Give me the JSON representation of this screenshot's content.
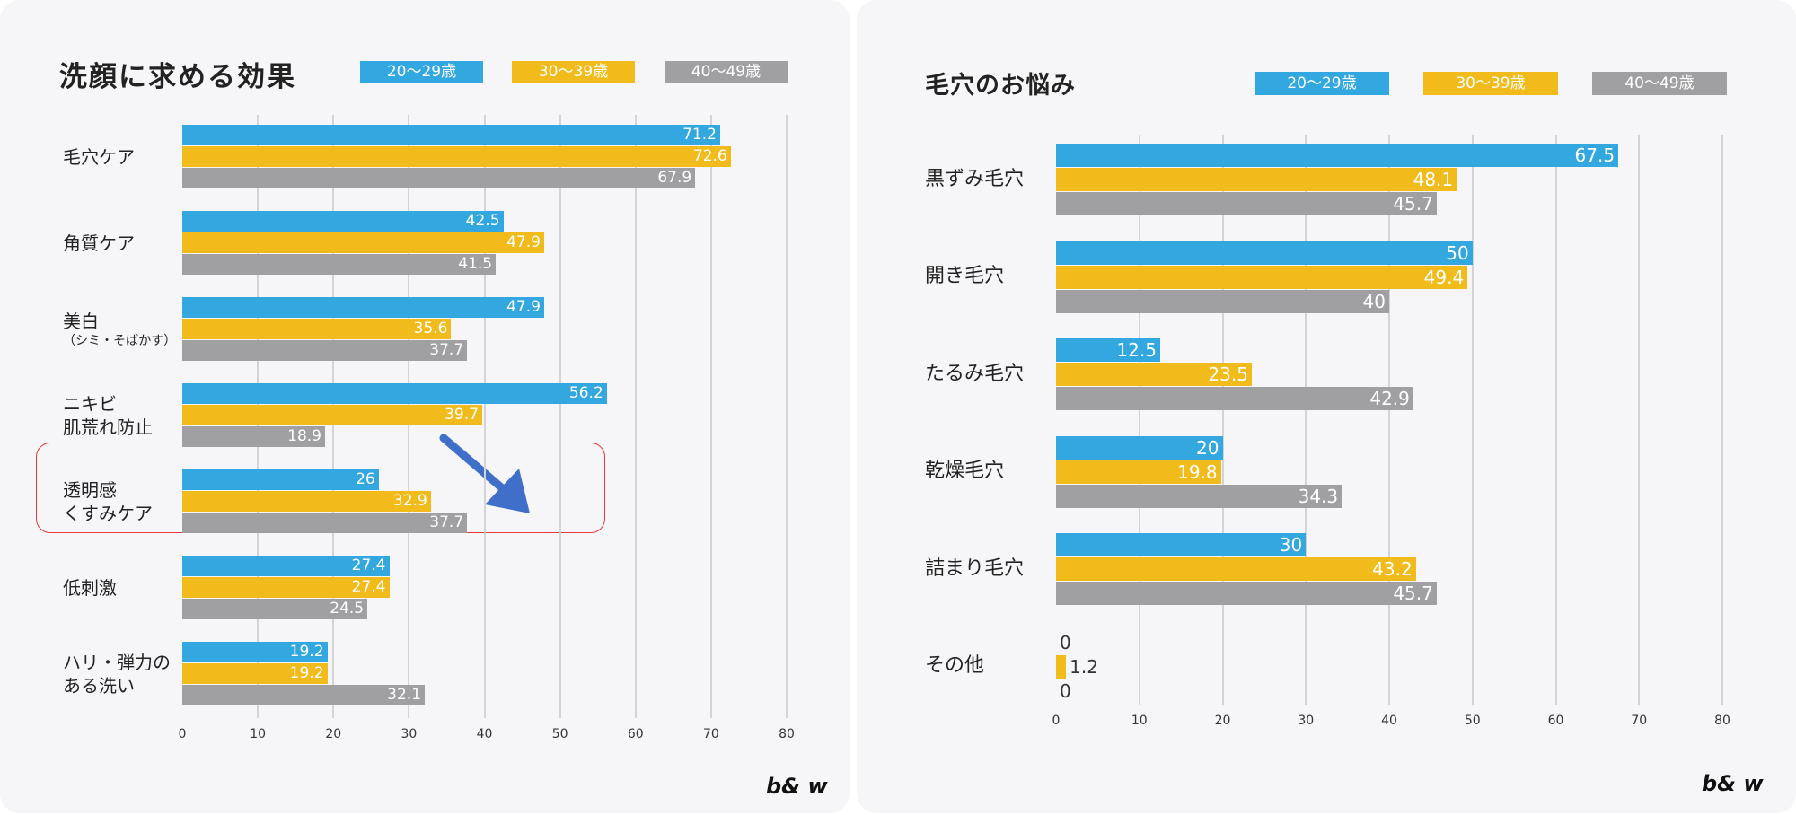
{
  "colors": {
    "s1": "#33a7e0",
    "s2": "#f2bb1c",
    "s3": "#a0a0a3",
    "highlight": "#e63a3a",
    "arrow": "#3f6fc9"
  },
  "brand": "b& w",
  "chart_data": [
    {
      "type": "bar",
      "orientation": "horizontal",
      "title": "洗顔に求める効果",
      "xlabel": "",
      "ylabel": "",
      "xlim": [
        0,
        80
      ],
      "ticks": [
        "0",
        "10",
        "20",
        "30",
        "40",
        "50",
        "60",
        "70",
        "80"
      ],
      "grid": true,
      "legend_position": "top",
      "categories": [
        {
          "main": "毛穴ケア",
          "sub": ""
        },
        {
          "main": "角質ケア",
          "sub": ""
        },
        {
          "main": "美白",
          "sub": "（シミ・そばかす）"
        },
        {
          "main": "ニキビ\n肌荒れ防止",
          "sub": ""
        },
        {
          "main": "透明感\nくすみケア",
          "sub": ""
        },
        {
          "main": "低刺激",
          "sub": ""
        },
        {
          "main": "ハリ・弾力の\nある洗い",
          "sub": ""
        }
      ],
      "series": [
        {
          "name": "20〜29歳",
          "values": [
            71.2,
            42.5,
            47.9,
            56.2,
            26,
            27.4,
            19.2
          ]
        },
        {
          "name": "30〜39歳",
          "values": [
            72.6,
            47.9,
            35.6,
            39.7,
            32.9,
            27.4,
            19.2
          ]
        },
        {
          "name": "40〜49歳",
          "values": [
            67.9,
            41.5,
            37.7,
            18.9,
            37.7,
            24.5,
            32.1
          ]
        }
      ],
      "annotations": [
        "highlight-box around 透明感 くすみケア",
        "downward arrow"
      ]
    },
    {
      "type": "bar",
      "orientation": "horizontal",
      "title": "毛穴のお悩み",
      "xlabel": "",
      "ylabel": "",
      "xlim": [
        0,
        80
      ],
      "ticks": [
        "0",
        "10",
        "20",
        "30",
        "40",
        "50",
        "60",
        "70",
        "80"
      ],
      "grid": true,
      "legend_position": "top",
      "categories": [
        {
          "main": "黒ずみ毛穴",
          "sub": ""
        },
        {
          "main": "開き毛穴",
          "sub": ""
        },
        {
          "main": "たるみ毛穴",
          "sub": ""
        },
        {
          "main": "乾燥毛穴",
          "sub": ""
        },
        {
          "main": "詰まり毛穴",
          "sub": ""
        },
        {
          "main": "その他",
          "sub": ""
        }
      ],
      "series": [
        {
          "name": "20〜29歳",
          "values": [
            67.5,
            50,
            12.5,
            20,
            30,
            0
          ]
        },
        {
          "name": "30〜39歳",
          "values": [
            48.1,
            49.4,
            23.5,
            19.8,
            43.2,
            1.2
          ]
        },
        {
          "name": "40〜49歳",
          "values": [
            45.7,
            40,
            42.9,
            34.3,
            45.7,
            0
          ]
        }
      ]
    }
  ]
}
